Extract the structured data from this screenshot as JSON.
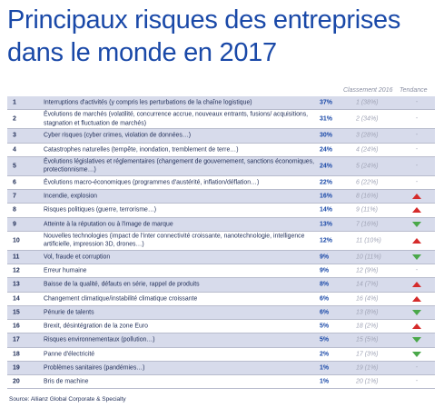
{
  "title": "Principaux risques des entreprises dans le monde en 2017",
  "columns": {
    "classement": "Classement 2016",
    "tendance": "Tendance"
  },
  "colors": {
    "title": "#1a49a8",
    "shade": "#d7dbeb",
    "up": "#d52b2b",
    "down": "#4aa84a"
  },
  "rows": [
    {
      "rank": "1",
      "label": "Interruptions d'activités (y compris les perturbations de la chaîne logistique)",
      "pct": "37%",
      "prev": "1 (38%)",
      "trend": "neutral"
    },
    {
      "rank": "2",
      "label": "Évolutions de marchés (volatilité, concurrence accrue, nouveaux entrants, fusions/ acquisitions, stagnation et fluctuation de marchés)",
      "pct": "31%",
      "prev": "2 (34%)",
      "trend": "neutral"
    },
    {
      "rank": "3",
      "label": "Cyber risques (cyber crimes, violation de données…)",
      "pct": "30%",
      "prev": "3 (28%)",
      "trend": "neutral"
    },
    {
      "rank": "4",
      "label": "Catastrophes naturelles (tempête, inondation, tremblement de terre…)",
      "pct": "24%",
      "prev": "4 (24%)",
      "trend": "neutral"
    },
    {
      "rank": "5",
      "label": "Évolutions législatives et réglementaires (changement de gouvernement, sanctions économiques, protectionnisme…)",
      "pct": "24%",
      "prev": "5 (24%)",
      "trend": "neutral"
    },
    {
      "rank": "6",
      "label": "Évolutions macro-économiques (programmes d'austérité, inflation/déflation…)",
      "pct": "22%",
      "prev": "6 (22%)",
      "trend": "neutral"
    },
    {
      "rank": "7",
      "label": "Incendie, explosion",
      "pct": "16%",
      "prev": "8 (16%)",
      "trend": "up"
    },
    {
      "rank": "8",
      "label": "Risques politiques (guerre, terrorisme…)",
      "pct": "14%",
      "prev": "9 (11%)",
      "trend": "up"
    },
    {
      "rank": "9",
      "label": "Atteinte à la réputation ou à l'image de marque",
      "pct": "13%",
      "prev": "7 (16%)",
      "trend": "down"
    },
    {
      "rank": "10",
      "label": "Nouvelles technologies (impact de l'inter connectivité croissante, nanotechnologie, intelligence artificielle, impression 3D, drones…)",
      "pct": "12%",
      "prev": "11 (10%)",
      "trend": "up"
    },
    {
      "rank": "11",
      "label": "Vol, fraude et corruption",
      "pct": "9%",
      "prev": "10 (11%)",
      "trend": "down"
    },
    {
      "rank": "12",
      "label": "Erreur humaine",
      "pct": "9%",
      "prev": "12 (9%)",
      "trend": "neutral"
    },
    {
      "rank": "13",
      "label": "Baisse de la qualité, défauts en série, rappel de produits",
      "pct": "8%",
      "prev": "14 (7%)",
      "trend": "up"
    },
    {
      "rank": "14",
      "label": "Changement climatique/instabilité climatique croissante",
      "pct": "6%",
      "prev": "16 (4%)",
      "trend": "up"
    },
    {
      "rank": "15",
      "label": "Pénurie de talents",
      "pct": "6%",
      "prev": "13 (8%)",
      "trend": "down"
    },
    {
      "rank": "16",
      "label": "Brexit, désintégration de la zone Euro",
      "pct": "5%",
      "prev": "18 (2%)",
      "trend": "up"
    },
    {
      "rank": "17",
      "label": "Risques environnementaux (pollution…)",
      "pct": "5%",
      "prev": "15 (5%)",
      "trend": "down"
    },
    {
      "rank": "18",
      "label": "Panne d'électricité",
      "pct": "2%",
      "prev": "17 (3%)",
      "trend": "down"
    },
    {
      "rank": "19",
      "label": "Problèmes sanitaires (pandémies…)",
      "pct": "1%",
      "prev": "19 (1%)",
      "trend": "neutral"
    },
    {
      "rank": "20",
      "label": "Bris de machine",
      "pct": "1%",
      "prev": "20 (1%)",
      "trend": "neutral"
    }
  ],
  "neutral_mark": "-",
  "source": "Source: Allianz Global Corporate & Specialty"
}
